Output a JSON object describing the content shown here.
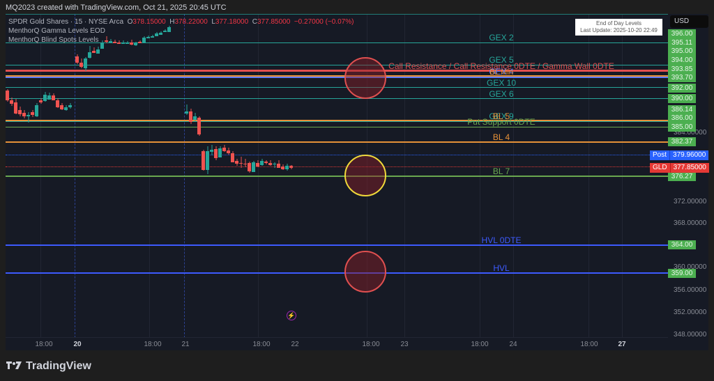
{
  "caption": "MQ2023 created with TradingView.com, Oct 21, 2025 20:45 UTC",
  "symbol": {
    "name": "SPDR Gold Shares · 15 · NYSE Arca",
    "open_label": "O",
    "open": "378.15000",
    "high_label": "H",
    "high": "378.22000",
    "low_label": "L",
    "low": "377.18000",
    "close_label": "C",
    "close": "377.85000",
    "change": "−0.27000 (−0.07%)"
  },
  "indicators": [
    "MenthorQ Gamma Levels EOD",
    "MenthorQ Blind Spots Levels"
  ],
  "eod_box": {
    "title": "End of Day Levels",
    "update": "Last Update: 2025-10-20 22:49"
  },
  "currency": "USD",
  "levels": [
    {
      "label": "GEX 2",
      "price": "395.11",
      "color": "#26a69a"
    },
    {
      "label": "GEX 5",
      "price": "393.85",
      "color": "#26a69a"
    },
    {
      "label": "Call Resistance / Call Resistance 0DTE / Gamma Wall 0DTE",
      "price": "393.70",
      "color": "#e05050"
    },
    {
      "label": "GEX 4",
      "price": "393.70",
      "color": "#26a69a"
    },
    {
      "label": "BL Min",
      "price": "393.70",
      "color": "#e69138"
    },
    {
      "label": "GEX 10",
      "price": "392.00",
      "color": "#26a69a"
    },
    {
      "label": "GEX 6",
      "price": "390.00",
      "color": "#26a69a"
    },
    {
      "label": "GEX 9",
      "price": "386.14",
      "color": "#26a69a"
    },
    {
      "label": "BL 5",
      "price": "386.00",
      "color": "#e69138"
    },
    {
      "label": "Put Support 0DTE",
      "price": "385.00",
      "color": "#6aa84f"
    },
    {
      "label": "BL 4",
      "price": "382.37",
      "color": "#e69138"
    },
    {
      "label": "BL 7",
      "price": "376.27",
      "color": "#6aa84f"
    },
    {
      "label": "HVL 0DTE",
      "price": "364.00",
      "color": "#3d5afe"
    },
    {
      "label": "HVL",
      "price": "359.00",
      "color": "#3d5afe"
    }
  ],
  "price_tags": [
    "396.00",
    "395.11",
    "395.00",
    "394.00",
    "393.85",
    "393.70",
    "392.00",
    "390.00",
    "386.14",
    "386.00",
    "385.00",
    "382.37",
    "376.27",
    "364.00",
    "359.00"
  ],
  "price_scale": [
    "384.00000",
    "372.00000",
    "368.00000",
    "360.00000",
    "356.00000",
    "352.00000",
    "348.00000"
  ],
  "post": {
    "label": "Post",
    "price": "379.96000"
  },
  "last": {
    "label": "GLD",
    "price": "377.85000"
  },
  "time_axis": [
    {
      "label": "18:00",
      "bold": false
    },
    {
      "label": "20",
      "bold": true
    },
    {
      "label": "18:00",
      "bold": false
    },
    {
      "label": "21",
      "bold": false
    },
    {
      "label": "18:00",
      "bold": false
    },
    {
      "label": "22",
      "bold": false
    },
    {
      "label": "18:00",
      "bold": false
    },
    {
      "label": "23",
      "bold": false
    },
    {
      "label": "18:00",
      "bold": false
    },
    {
      "label": "24",
      "bold": false
    },
    {
      "label": "18:00",
      "bold": false
    },
    {
      "label": "27",
      "bold": true
    }
  ],
  "brand": "TradingView",
  "colors": {
    "up": "#26a69a",
    "down": "#ef5350",
    "bg": "#161a25",
    "tag_green": "#4caf50",
    "post_blue": "#2962ff",
    "last_red": "#e53935"
  }
}
